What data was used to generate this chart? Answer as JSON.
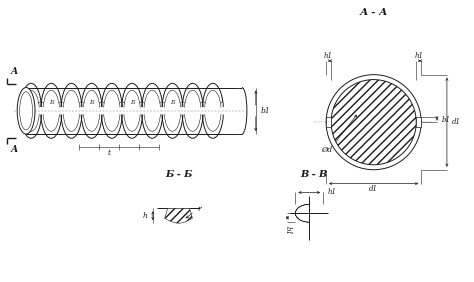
{
  "bg_color": "#ffffff",
  "line_color": "#1a1a1a",
  "title_AA": "А - А",
  "title_BB": "Б - Б",
  "title_VV": "В - В",
  "label_h1": "h1",
  "label_b1": "b1",
  "label_d1": "d1",
  "label_phid": "Ød",
  "label_h": "h",
  "label_r": "r",
  "label_t": "t",
  "label_A": "А",
  "label_B": "Б",
  "label_V": "В"
}
